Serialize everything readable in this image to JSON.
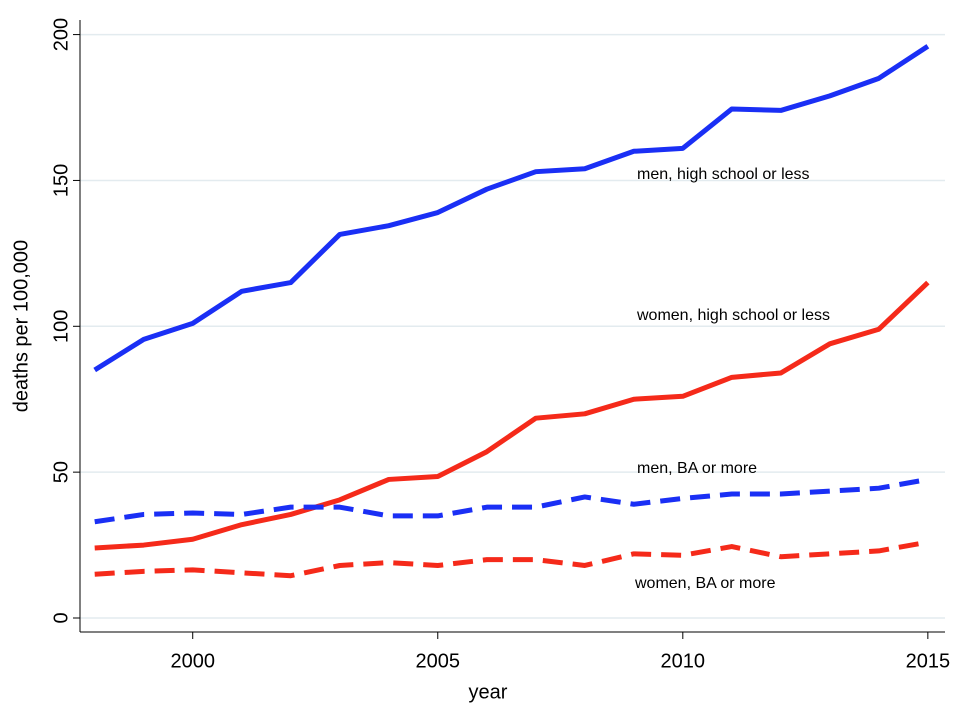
{
  "chart_data": {
    "type": "line",
    "x": [
      1998,
      1999,
      2000,
      2001,
      2002,
      2003,
      2004,
      2005,
      2006,
      2007,
      2008,
      2009,
      2010,
      2011,
      2012,
      2013,
      2014,
      2015
    ],
    "x_label": "year",
    "y_label": "deaths per 100,000",
    "series": [
      {
        "name": "men, high school or less",
        "color": "#1a2ff5",
        "dashed": false,
        "values": [
          85,
          95.5,
          101,
          112,
          115,
          131.5,
          134.5,
          139,
          147,
          153,
          154,
          160,
          161,
          174.5,
          174,
          179,
          185,
          196
        ]
      },
      {
        "name": "women, high school or less",
        "color": "#f52a1a",
        "dashed": false,
        "values": [
          24,
          25,
          27,
          32,
          35.5,
          40.5,
          47.5,
          48.5,
          57,
          68.5,
          70,
          75,
          76,
          82.5,
          84,
          94,
          99,
          115
        ]
      },
      {
        "name": "men, BA or more",
        "color": "#1a2ff5",
        "dashed": true,
        "values": [
          33,
          35.5,
          36,
          35.5,
          38,
          38,
          35,
          35,
          38,
          38,
          41.5,
          39,
          41,
          42.5,
          42.5,
          43.5,
          44.5,
          47.5
        ]
      },
      {
        "name": "women, BA or more",
        "color": "#f52a1a",
        "dashed": true,
        "values": [
          15,
          16,
          16.5,
          15.5,
          14.5,
          18,
          19,
          18,
          20,
          20,
          18,
          22,
          21.5,
          24.5,
          21,
          22,
          23,
          26
        ]
      }
    ],
    "xlim": [
      1997.7,
      2015.35
    ],
    "xticks": [
      2000,
      2005,
      2010,
      2015
    ],
    "ylim": [
      -4.8,
      205
    ],
    "yticks": [
      0,
      50,
      100,
      150,
      200
    ],
    "grid": true
  }
}
